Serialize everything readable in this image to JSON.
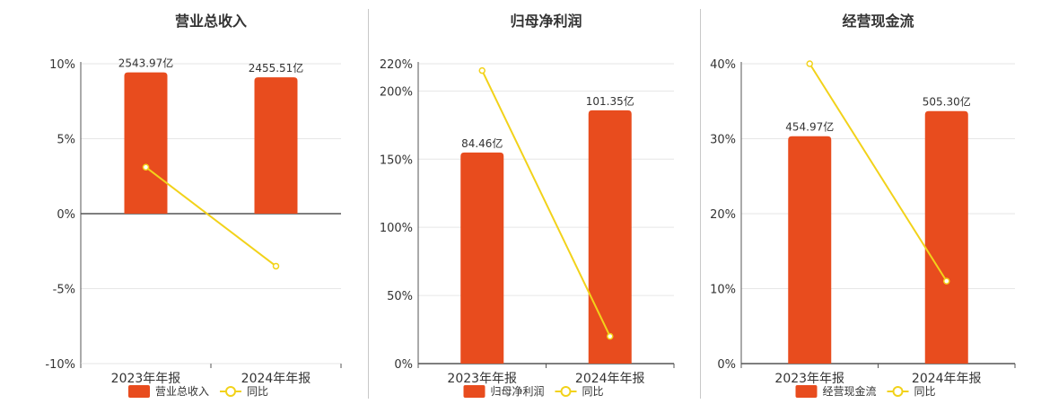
{
  "colors": {
    "bar": "#e84c1e",
    "line": "#f2d21a",
    "grid": "#e6e6e6",
    "axis": "#555555"
  },
  "chart_data": [
    {
      "type": "bar",
      "title": "营业总收入",
      "categories": [
        "2023年年报",
        "2024年年报"
      ],
      "bar_series": {
        "name": "营业总收入",
        "values": [
          2543.97,
          2455.51
        ],
        "labels": [
          "2543.97亿",
          "2455.51亿"
        ]
      },
      "line_series": {
        "name": "同比",
        "values": [
          3.1,
          -3.5
        ]
      },
      "y_axis": {
        "min": -10,
        "max": 10,
        "ticks": [
          10,
          5,
          0,
          -5,
          -10
        ],
        "tick_labels": [
          "10%",
          "5%",
          "0%",
          "-5%",
          "-10%"
        ]
      },
      "bar_axis_max": 2700,
      "grid": true,
      "legend": "bottom"
    },
    {
      "type": "bar",
      "title": "归母净利润",
      "categories": [
        "2023年年报",
        "2024年年报"
      ],
      "bar_series": {
        "name": "归母净利润",
        "values": [
          84.46,
          101.35
        ],
        "labels": [
          "84.46亿",
          "101.35亿"
        ]
      },
      "line_series": {
        "name": "同比",
        "values": [
          215,
          20
        ]
      },
      "y_axis": {
        "min": 0,
        "max": 220,
        "ticks": [
          220,
          200,
          150,
          100,
          50,
          0
        ],
        "tick_labels": [
          "220%",
          "200%",
          "150%",
          "100%",
          "50%",
          "0%"
        ]
      },
      "bar_axis_max": 120,
      "grid": true,
      "legend": "bottom"
    },
    {
      "type": "bar",
      "title": "经营现金流",
      "categories": [
        "2023年年报",
        "2024年年报"
      ],
      "bar_series": {
        "name": "经营现金流",
        "values": [
          454.97,
          505.3
        ],
        "labels": [
          "454.97亿",
          "505.30亿"
        ]
      },
      "line_series": {
        "name": "同比",
        "values": [
          40,
          11
        ]
      },
      "y_axis": {
        "min": 0,
        "max": 40,
        "ticks": [
          40,
          30,
          20,
          10,
          0
        ],
        "tick_labels": [
          "40%",
          "30%",
          "20%",
          "10%",
          "0%"
        ]
      },
      "bar_axis_max": 600,
      "grid": true,
      "legend": "bottom"
    }
  ]
}
